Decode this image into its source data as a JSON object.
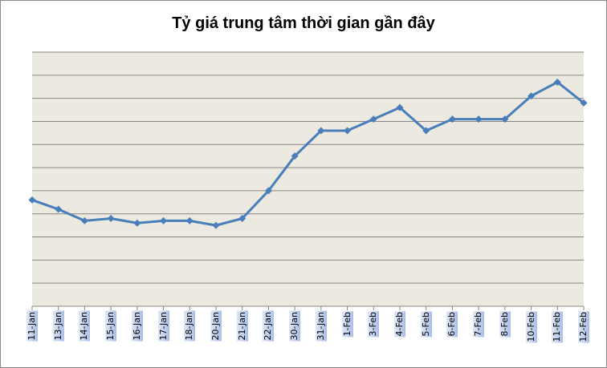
{
  "chart_data": {
    "type": "line",
    "title": "Tỷ giá trung tâm thời gian gần đây",
    "xlabel": "",
    "ylabel": "",
    "grid": true,
    "legend": "none",
    "y_ticks_visible": false,
    "ylim": [
      0,
      11
    ],
    "categories": [
      "11-Jan",
      "13-Jan",
      "14-Jan",
      "15-Jan",
      "16-Jan",
      "17-Jan",
      "18-Jan",
      "20-Jan",
      "21-Jan",
      "22-Jan",
      "30-Jan",
      "31-Jan",
      "1-Feb",
      "3-Feb",
      "4-Feb",
      "5-Feb",
      "6-Feb",
      "7-Feb",
      "8-Feb",
      "10-Feb",
      "11-Feb",
      "12-Feb"
    ],
    "series": [
      {
        "name": "Tỷ giá trung tâm",
        "color": "#4a7ebb",
        "values": [
          4.6,
          4.2,
          3.7,
          3.8,
          3.6,
          3.7,
          3.7,
          3.5,
          3.8,
          5.0,
          6.5,
          7.6,
          7.6,
          8.1,
          8.6,
          7.6,
          8.1,
          8.1,
          8.1,
          9.1,
          9.7,
          8.8
        ]
      }
    ]
  },
  "colors": {
    "plot_bg": "#ece9e0",
    "gridline": "#868686",
    "line": "#4a7ebb",
    "label_bg": "#b8cbec"
  }
}
